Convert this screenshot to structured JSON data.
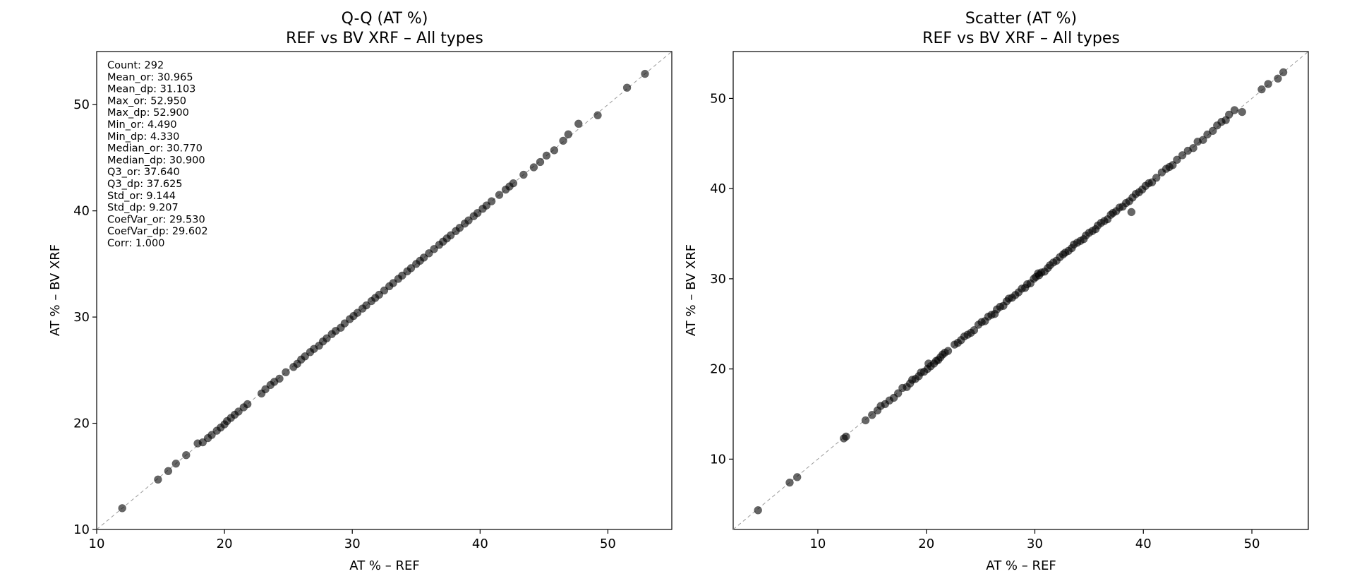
{
  "chart_data": [
    {
      "type": "scatter",
      "subtype": "qq",
      "title": "Q-Q (AT %)",
      "subtitle": "REF vs BV XRF – All types",
      "xlabel": "AT % – REF",
      "ylabel": "AT % – BV XRF",
      "xlim": [
        10,
        55
      ],
      "ylim": [
        10,
        55
      ],
      "xticks": [
        10,
        20,
        30,
        40,
        50
      ],
      "yticks": [
        10,
        20,
        30,
        40,
        50
      ],
      "xtick_labels": [
        "10",
        "20",
        "30",
        "40",
        "50"
      ],
      "ytick_labels": [
        "10",
        "20",
        "30",
        "40",
        "50"
      ],
      "grid": false,
      "reference_line": "y = x (dashed gray)",
      "point_color": "#000000",
      "point_opacity": 0.6,
      "stats": [
        "Count: 292",
        "Mean_or: 30.965",
        "Mean_dp: 31.103",
        "Max_or: 52.950",
        "Max_dp: 52.900",
        "Min_or: 4.490",
        "Min_dp: 4.330",
        "Median_or: 30.770",
        "Median_dp: 30.900",
        "Q3_or: 37.640",
        "Q3_dp: 37.625",
        "Std_or: 9.144",
        "Std_dp: 9.207",
        "CoefVar_or: 29.530",
        "CoefVar_dp: 29.602",
        "Corr: 1.000"
      ],
      "points": [
        [
          12.0,
          12.0
        ],
        [
          14.8,
          14.7
        ],
        [
          15.6,
          15.5
        ],
        [
          16.2,
          16.2
        ],
        [
          17.0,
          17.0
        ],
        [
          17.9,
          18.1
        ],
        [
          18.3,
          18.2
        ],
        [
          18.7,
          18.6
        ],
        [
          19.0,
          18.9
        ],
        [
          19.4,
          19.3
        ],
        [
          19.7,
          19.6
        ],
        [
          20.0,
          19.9
        ],
        [
          20.2,
          20.2
        ],
        [
          20.5,
          20.5
        ],
        [
          20.8,
          20.8
        ],
        [
          21.1,
          21.1
        ],
        [
          21.5,
          21.5
        ],
        [
          21.8,
          21.8
        ],
        [
          22.9,
          22.8
        ],
        [
          23.2,
          23.2
        ],
        [
          23.6,
          23.6
        ],
        [
          23.9,
          23.9
        ],
        [
          24.3,
          24.2
        ],
        [
          24.8,
          24.8
        ],
        [
          25.4,
          25.3
        ],
        [
          25.7,
          25.6
        ],
        [
          26.0,
          26.0
        ],
        [
          26.3,
          26.3
        ],
        [
          26.7,
          26.7
        ],
        [
          27.0,
          27.0
        ],
        [
          27.4,
          27.3
        ],
        [
          27.7,
          27.7
        ],
        [
          28.0,
          28.0
        ],
        [
          28.4,
          28.4
        ],
        [
          28.7,
          28.7
        ],
        [
          29.1,
          29.0
        ],
        [
          29.4,
          29.4
        ],
        [
          29.8,
          29.8
        ],
        [
          30.1,
          30.1
        ],
        [
          30.4,
          30.4
        ],
        [
          30.8,
          30.8
        ],
        [
          31.1,
          31.1
        ],
        [
          31.5,
          31.5
        ],
        [
          31.8,
          31.8
        ],
        [
          32.1,
          32.1
        ],
        [
          32.5,
          32.5
        ],
        [
          32.9,
          32.9
        ],
        [
          33.2,
          33.2
        ],
        [
          33.6,
          33.6
        ],
        [
          33.9,
          33.9
        ],
        [
          34.3,
          34.3
        ],
        [
          34.6,
          34.6
        ],
        [
          35.0,
          35.0
        ],
        [
          35.3,
          35.3
        ],
        [
          35.6,
          35.6
        ],
        [
          36.0,
          36.0
        ],
        [
          36.4,
          36.4
        ],
        [
          36.8,
          36.8
        ],
        [
          37.1,
          37.1
        ],
        [
          37.4,
          37.4
        ],
        [
          37.7,
          37.7
        ],
        [
          38.1,
          38.1
        ],
        [
          38.4,
          38.4
        ],
        [
          38.8,
          38.8
        ],
        [
          39.1,
          39.1
        ],
        [
          39.5,
          39.5
        ],
        [
          39.8,
          39.8
        ],
        [
          40.2,
          40.2
        ],
        [
          40.5,
          40.5
        ],
        [
          40.9,
          40.9
        ],
        [
          41.5,
          41.5
        ],
        [
          42.0,
          42.0
        ],
        [
          42.3,
          42.3
        ],
        [
          42.6,
          42.6
        ],
        [
          43.4,
          43.4
        ],
        [
          44.2,
          44.1
        ],
        [
          44.7,
          44.6
        ],
        [
          45.2,
          45.2
        ],
        [
          45.8,
          45.7
        ],
        [
          46.5,
          46.6
        ],
        [
          46.9,
          47.2
        ],
        [
          47.7,
          48.2
        ],
        [
          49.2,
          49.0
        ],
        [
          51.5,
          51.6
        ],
        [
          52.9,
          52.9
        ]
      ]
    },
    {
      "type": "scatter",
      "title": "Scatter (AT %)",
      "subtitle": "REF vs BV XRF – All types",
      "xlabel": "AT % – REF",
      "ylabel": "AT % – BV XRF",
      "xlim": [
        2.2,
        55.2
      ],
      "ylim": [
        2.2,
        55.2
      ],
      "xticks": [
        10,
        20,
        30,
        40,
        50
      ],
      "yticks": [
        10,
        20,
        30,
        40,
        50
      ],
      "xtick_labels": [
        "10",
        "20",
        "30",
        "40",
        "50"
      ],
      "ytick_labels": [
        "10",
        "20",
        "30",
        "40",
        "50"
      ],
      "grid": false,
      "reference_line": "y = x (dashed gray)",
      "point_color": "#000000",
      "point_opacity": 0.6,
      "points": [
        [
          4.49,
          4.33
        ],
        [
          7.4,
          7.4
        ],
        [
          8.1,
          8.0
        ],
        [
          12.4,
          12.3
        ],
        [
          12.6,
          12.5
        ],
        [
          14.4,
          14.3
        ],
        [
          15.0,
          14.9
        ],
        [
          15.5,
          15.4
        ],
        [
          15.8,
          15.9
        ],
        [
          16.2,
          16.1
        ],
        [
          16.6,
          16.5
        ],
        [
          17.0,
          16.8
        ],
        [
          17.4,
          17.3
        ],
        [
          17.8,
          17.9
        ],
        [
          18.2,
          18.0
        ],
        [
          18.5,
          18.4
        ],
        [
          18.7,
          18.8
        ],
        [
          19.0,
          18.9
        ],
        [
          19.3,
          19.2
        ],
        [
          19.5,
          19.6
        ],
        [
          19.8,
          19.7
        ],
        [
          20.1,
          20.0
        ],
        [
          20.2,
          20.6
        ],
        [
          20.4,
          20.3
        ],
        [
          20.7,
          20.6
        ],
        [
          20.9,
          20.9
        ],
        [
          21.1,
          21.0
        ],
        [
          21.3,
          21.3
        ],
        [
          21.5,
          21.6
        ],
        [
          21.7,
          21.8
        ],
        [
          22.0,
          22.0
        ],
        [
          22.6,
          22.7
        ],
        [
          22.9,
          22.9
        ],
        [
          23.2,
          23.2
        ],
        [
          23.5,
          23.6
        ],
        [
          23.8,
          23.8
        ],
        [
          24.1,
          24.0
        ],
        [
          24.4,
          24.3
        ],
        [
          24.8,
          24.9
        ],
        [
          25.1,
          25.2
        ],
        [
          25.4,
          25.3
        ],
        [
          25.7,
          25.8
        ],
        [
          26.0,
          26.0
        ],
        [
          26.3,
          26.1
        ],
        [
          26.5,
          26.6
        ],
        [
          26.8,
          26.9
        ],
        [
          27.1,
          27.0
        ],
        [
          27.4,
          27.5
        ],
        [
          27.6,
          27.8
        ],
        [
          27.9,
          27.9
        ],
        [
          28.2,
          28.2
        ],
        [
          28.5,
          28.5
        ],
        [
          28.8,
          28.9
        ],
        [
          29.1,
          29.0
        ],
        [
          29.3,
          29.4
        ],
        [
          29.6,
          29.5
        ],
        [
          29.9,
          30.0
        ],
        [
          30.1,
          30.2
        ],
        [
          30.3,
          30.6
        ],
        [
          30.4,
          30.4
        ],
        [
          30.6,
          30.7
        ],
        [
          30.9,
          30.8
        ],
        [
          31.2,
          31.2
        ],
        [
          31.4,
          31.5
        ],
        [
          31.7,
          31.8
        ],
        [
          32.0,
          32.0
        ],
        [
          32.3,
          32.4
        ],
        [
          32.6,
          32.7
        ],
        [
          32.8,
          32.9
        ],
        [
          33.1,
          33.1
        ],
        [
          33.4,
          33.4
        ],
        [
          33.6,
          33.8
        ],
        [
          33.9,
          34.0
        ],
        [
          34.2,
          34.2
        ],
        [
          34.5,
          34.4
        ],
        [
          34.7,
          34.8
        ],
        [
          35.0,
          35.1
        ],
        [
          35.3,
          35.3
        ],
        [
          35.6,
          35.5
        ],
        [
          35.8,
          35.9
        ],
        [
          36.1,
          36.2
        ],
        [
          36.4,
          36.4
        ],
        [
          36.7,
          36.6
        ],
        [
          37.0,
          37.1
        ],
        [
          37.2,
          37.3
        ],
        [
          37.5,
          37.5
        ],
        [
          37.8,
          37.9
        ],
        [
          38.1,
          38.0
        ],
        [
          38.4,
          38.4
        ],
        [
          38.7,
          38.6
        ],
        [
          38.9,
          37.4
        ],
        [
          39.0,
          39.0
        ],
        [
          39.3,
          39.4
        ],
        [
          39.6,
          39.6
        ],
        [
          39.9,
          39.9
        ],
        [
          40.2,
          40.3
        ],
        [
          40.5,
          40.6
        ],
        [
          40.8,
          40.7
        ],
        [
          41.2,
          41.2
        ],
        [
          41.7,
          41.8
        ],
        [
          42.1,
          42.2
        ],
        [
          42.4,
          42.4
        ],
        [
          42.7,
          42.6
        ],
        [
          43.1,
          43.2
        ],
        [
          43.6,
          43.7
        ],
        [
          44.1,
          44.2
        ],
        [
          44.6,
          44.5
        ],
        [
          45.0,
          45.2
        ],
        [
          45.5,
          45.4
        ],
        [
          45.9,
          46.0
        ],
        [
          46.4,
          46.4
        ],
        [
          46.8,
          47.0
        ],
        [
          47.2,
          47.4
        ],
        [
          47.6,
          47.6
        ],
        [
          47.9,
          48.2
        ],
        [
          48.4,
          48.7
        ],
        [
          49.1,
          48.5
        ],
        [
          50.9,
          51.0
        ],
        [
          51.5,
          51.6
        ],
        [
          52.4,
          52.2
        ],
        [
          52.9,
          52.9
        ]
      ]
    }
  ]
}
